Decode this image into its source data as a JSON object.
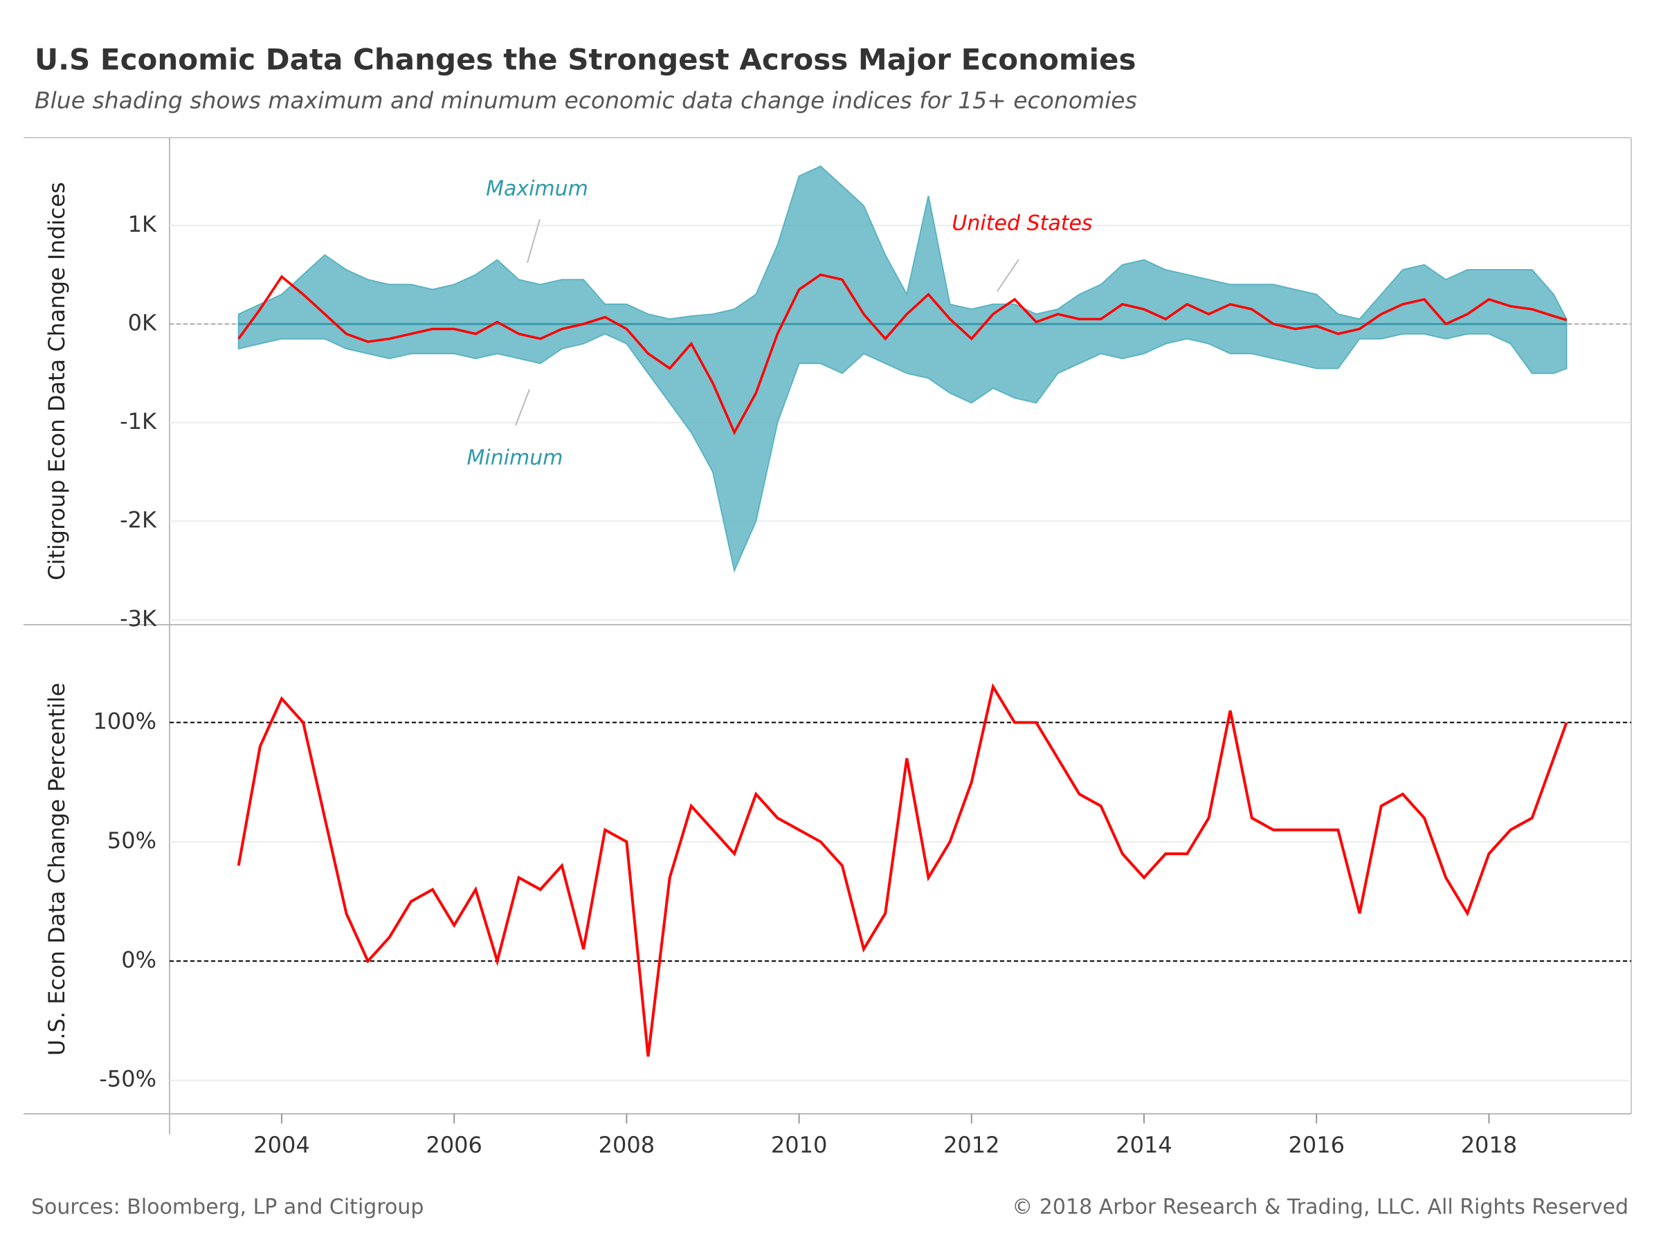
{
  "header": {
    "title": "U.S Economic Data Changes the Strongest Across Major Economies",
    "subtitle": "Blue shading shows maximum and minumum economic data change indices for 15+ economies"
  },
  "footer": {
    "source": "Sources: Bloomberg, LP and Citigroup",
    "copyright": "© 2018 Arbor Research & Trading, LLC. All Rights Reserved"
  },
  "chart_data": [
    {
      "type": "band",
      "y_label": "Citigroup Econ Data Change Indices",
      "x": [
        2003.5,
        2003.75,
        2004,
        2004.25,
        2004.5,
        2004.75,
        2005,
        2005.25,
        2005.5,
        2005.75,
        2006,
        2006.25,
        2006.5,
        2006.75,
        2007,
        2007.25,
        2007.5,
        2007.75,
        2008,
        2008.25,
        2008.5,
        2008.75,
        2009,
        2009.25,
        2009.5,
        2009.75,
        2010,
        2010.25,
        2010.5,
        2010.75,
        2011,
        2011.25,
        2011.5,
        2011.75,
        2012,
        2012.25,
        2012.5,
        2012.75,
        2013,
        2013.25,
        2013.5,
        2013.75,
        2014,
        2014.25,
        2014.5,
        2014.75,
        2015,
        2015.25,
        2015.5,
        2015.75,
        2016,
        2016.25,
        2016.5,
        2016.75,
        2017,
        2017.25,
        2017.5,
        2017.75,
        2018,
        2018.25,
        2018.5,
        2018.75,
        2018.9
      ],
      "series": [
        {
          "name": "Maximum",
          "color": "#5bb3c2",
          "values": [
            100,
            200,
            300,
            500,
            700,
            550,
            450,
            400,
            400,
            350,
            400,
            500,
            650,
            450,
            400,
            450,
            450,
            200,
            200,
            100,
            50,
            80,
            100,
            150,
            300,
            800,
            1500,
            1600,
            1400,
            1200,
            700,
            300,
            1300,
            200,
            150,
            200,
            200,
            100,
            150,
            300,
            400,
            600,
            650,
            550,
            500,
            450,
            400,
            400,
            400,
            350,
            300,
            100,
            50,
            300,
            550,
            600,
            450,
            550,
            550,
            550,
            550,
            300,
            50
          ]
        },
        {
          "name": "Minimum",
          "color": "#5bb3c2",
          "values": [
            -250,
            -200,
            -150,
            -150,
            -150,
            -250,
            -300,
            -350,
            -300,
            -300,
            -300,
            -350,
            -300,
            -350,
            -400,
            -250,
            -200,
            -100,
            -200,
            -500,
            -800,
            -1100,
            -1500,
            -2500,
            -2000,
            -1000,
            -400,
            -400,
            -500,
            -300,
            -400,
            -500,
            -550,
            -700,
            -800,
            -650,
            -750,
            -800,
            -500,
            -400,
            -300,
            -350,
            -300,
            -200,
            -150,
            -200,
            -300,
            -300,
            -350,
            -400,
            -450,
            -450,
            -150,
            -150,
            -100,
            -100,
            -150,
            -100,
            -100,
            -200,
            -500,
            -500,
            -450
          ]
        },
        {
          "name": "United States",
          "color": "#ff0000",
          "values": [
            -150,
            150,
            480,
            300,
            100,
            -100,
            -180,
            -150,
            -100,
            -50,
            -50,
            -100,
            20,
            -100,
            -150,
            -50,
            0,
            70,
            -50,
            -300,
            -450,
            -200,
            -600,
            -1100,
            -700,
            -100,
            350,
            500,
            450,
            100,
            -150,
            100,
            300,
            50,
            -150,
            100,
            250,
            20,
            100,
            50,
            50,
            200,
            150,
            50,
            200,
            100,
            200,
            150,
            0,
            -50,
            -20,
            -100,
            -50,
            100,
            200,
            250,
            0,
            100,
            250,
            180,
            150,
            80,
            40
          ]
        }
      ],
      "xlim": [
        2002.7,
        2019.65
      ],
      "ylim": [
        -3050,
        1890
      ],
      "yticks": [
        {
          "value": -3000,
          "label": "-3K"
        },
        {
          "value": -2000,
          "label": "-2K"
        },
        {
          "value": -1000,
          "label": "-1K"
        },
        {
          "value": 0,
          "label": "0K"
        },
        {
          "value": 1000,
          "label": "1K"
        }
      ],
      "grid": true,
      "reference_lines": [
        0
      ],
      "reference_color": "#aaaaaa"
    },
    {
      "type": "line",
      "y_label": "U.S.  Econ Data Change Percentile",
      "x": [
        2003.5,
        2003.75,
        2004,
        2004.25,
        2004.5,
        2004.75,
        2005,
        2005.25,
        2005.5,
        2005.75,
        2006,
        2006.25,
        2006.5,
        2006.75,
        2007,
        2007.25,
        2007.5,
        2007.75,
        2008,
        2008.25,
        2008.5,
        2008.75,
        2009,
        2009.25,
        2009.5,
        2009.75,
        2010,
        2010.25,
        2010.5,
        2010.75,
        2011,
        2011.25,
        2011.5,
        2011.75,
        2012,
        2012.25,
        2012.5,
        2012.75,
        2013,
        2013.25,
        2013.5,
        2013.75,
        2014,
        2014.25,
        2014.5,
        2014.75,
        2015,
        2015.25,
        2015.5,
        2015.75,
        2016,
        2016.25,
        2016.5,
        2016.75,
        2017,
        2017.25,
        2017.5,
        2017.75,
        2018,
        2018.25,
        2018.5,
        2018.75,
        2018.9
      ],
      "values": [
        40,
        90,
        110,
        100,
        60,
        20,
        0,
        10,
        25,
        30,
        15,
        30,
        0,
        35,
        30,
        40,
        5,
        55,
        50,
        -40,
        35,
        65,
        55,
        45,
        70,
        60,
        55,
        50,
        40,
        5,
        20,
        85,
        35,
        50,
        75,
        115,
        100,
        100,
        85,
        70,
        65,
        45,
        35,
        45,
        45,
        60,
        105,
        60,
        55,
        55,
        55,
        55,
        20,
        65,
        70,
        60,
        35,
        20,
        45,
        55,
        60,
        85,
        100
      ],
      "color": "#ff0000",
      "xlim": [
        2002.7,
        2019.65
      ],
      "xticks": [
        2004,
        2006,
        2008,
        2010,
        2012,
        2014,
        2016,
        2018
      ],
      "ylim": [
        -64,
        141
      ],
      "yticks": [
        {
          "value": -50,
          "label": "-50%"
        },
        {
          "value": 0,
          "label": "0%"
        },
        {
          "value": 50,
          "label": "50%"
        },
        {
          "value": 100,
          "label": "100%"
        }
      ],
      "grid": true,
      "reference_lines": [
        0,
        100
      ],
      "reference_color": "#000000"
    }
  ]
}
